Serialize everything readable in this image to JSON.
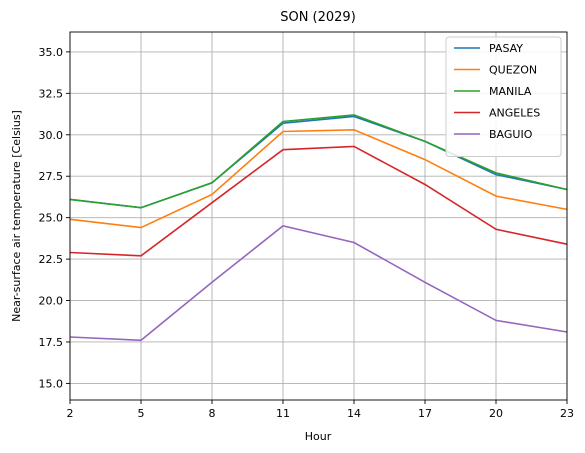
{
  "chart_data": {
    "type": "line",
    "title": "SON (2029)",
    "xlabel": "Hour",
    "ylabel": "Near-surface air temperature [Celsius]",
    "x": [
      2,
      5,
      8,
      11,
      14,
      17,
      20,
      23
    ],
    "xticks": [
      "2",
      "5",
      "8",
      "11",
      "14",
      "17",
      "20",
      "23"
    ],
    "xlim": [
      2,
      23
    ],
    "ylim": [
      14.0,
      36.2
    ],
    "yticks": [
      "15.0",
      "17.5",
      "20.0",
      "22.5",
      "25.0",
      "27.5",
      "30.0",
      "32.5",
      "35.0"
    ],
    "ytick_values": [
      15.0,
      17.5,
      20.0,
      22.5,
      25.0,
      27.5,
      30.0,
      32.5,
      35.0
    ],
    "grid": true,
    "legend_position": "top-right",
    "series": [
      {
        "name": "PASAY",
        "color": "#1f77b4",
        "values": [
          26.1,
          25.6,
          27.1,
          30.7,
          31.1,
          29.6,
          27.6,
          26.7
        ]
      },
      {
        "name": "QUEZON",
        "color": "#ff7f0e",
        "values": [
          24.9,
          24.4,
          26.4,
          30.2,
          30.3,
          28.5,
          26.3,
          25.5
        ]
      },
      {
        "name": "MANILA",
        "color": "#2ca02c",
        "values": [
          26.1,
          25.6,
          27.1,
          30.8,
          31.2,
          29.6,
          27.7,
          26.7
        ]
      },
      {
        "name": "ANGELES",
        "color": "#d62728",
        "values": [
          22.9,
          22.7,
          25.9,
          29.1,
          29.3,
          27.0,
          24.3,
          23.4
        ]
      },
      {
        "name": "BAGUIO",
        "color": "#9467bd",
        "values": [
          17.8,
          17.6,
          21.1,
          24.5,
          23.5,
          21.1,
          18.8,
          18.1
        ]
      }
    ]
  }
}
